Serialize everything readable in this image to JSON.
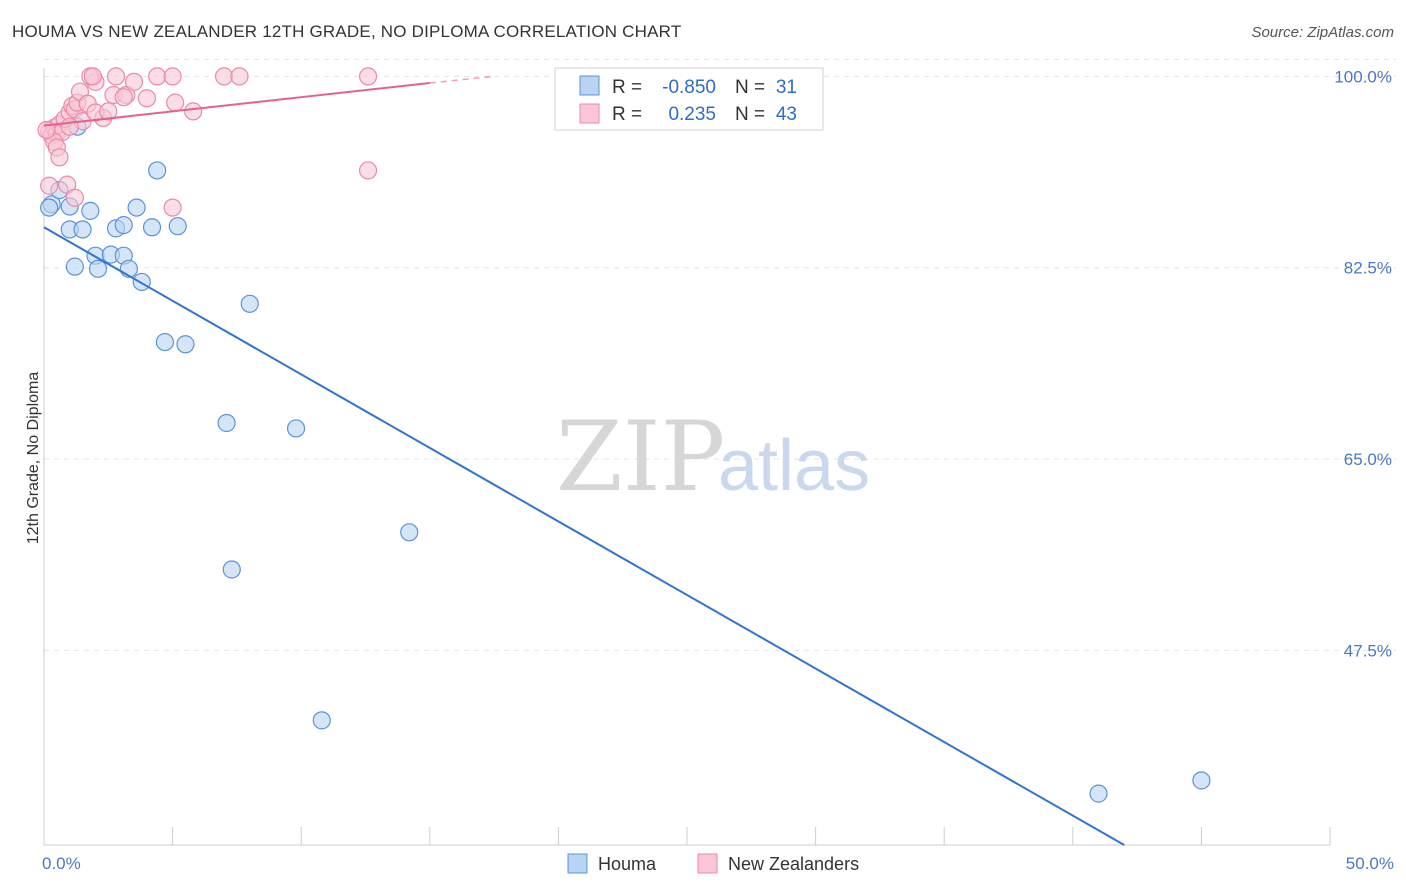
{
  "title": "HOUMA VS NEW ZEALANDER 12TH GRADE, NO DIPLOMA CORRELATION CHART",
  "source": "Source: ZipAtlas.com",
  "watermark": {
    "zip": "ZIP",
    "atlas": "atlas"
  },
  "colors": {
    "houma_fill": "#b8d3f4",
    "houma_stroke": "#5c93d6",
    "houma_line": "#2f74d0",
    "nz_fill": "#f8c6d5",
    "nz_stroke": "#e98aa8",
    "nz_line": "#e4638e",
    "grid": "#e3e3e3",
    "tick_text": "#4a78c4"
  },
  "legend": {
    "rows": [
      {
        "r_label": "R =",
        "r_value": "-0.850",
        "n_label": "N =",
        "n_value": "31"
      },
      {
        "r_label": "R =",
        "r_value": "0.235",
        "n_label": "N =",
        "n_value": "43"
      }
    ]
  },
  "chart_data": {
    "type": "scatter",
    "title": "HOUMA VS NEW ZEALANDER 12TH GRADE, NO DIPLOMA CORRELATION CHART",
    "xlabel": "",
    "ylabel": "12th Grade, No Diploma",
    "xlim": [
      0,
      50
    ],
    "ylim": [
      29.7,
      101.5
    ],
    "x_tick_labels": [
      "0.0%",
      "50.0%"
    ],
    "y_ticks": [
      100.0,
      82.5,
      65.0,
      47.5
    ],
    "y_tick_labels": [
      "100.0%",
      "82.5%",
      "65.0%",
      "47.5%"
    ],
    "grid": true,
    "legend_position": "top-center",
    "bottom_legend": [
      "Houma",
      "New Zealanders"
    ],
    "series": [
      {
        "name": "Houma",
        "r": -0.85,
        "n": 31,
        "points": [
          [
            0.3,
            88.3
          ],
          [
            1.0,
            88.1
          ],
          [
            0.6,
            89.6
          ],
          [
            1.3,
            95.4
          ],
          [
            1.8,
            87.7
          ],
          [
            1.0,
            86.0
          ],
          [
            1.5,
            86.0
          ],
          [
            2.8,
            86.1
          ],
          [
            3.1,
            86.4
          ],
          [
            4.2,
            86.2
          ],
          [
            5.2,
            86.3
          ],
          [
            3.6,
            88.0
          ],
          [
            4.4,
            91.4
          ],
          [
            1.2,
            82.6
          ],
          [
            2.0,
            83.6
          ],
          [
            2.1,
            82.4
          ],
          [
            2.6,
            83.7
          ],
          [
            3.1,
            83.6
          ],
          [
            3.3,
            82.4
          ],
          [
            3.8,
            81.2
          ],
          [
            8.0,
            79.2
          ],
          [
            4.7,
            75.7
          ],
          [
            5.5,
            75.5
          ],
          [
            7.1,
            68.3
          ],
          [
            9.8,
            67.8
          ],
          [
            14.2,
            58.3
          ],
          [
            7.3,
            54.9
          ],
          [
            10.8,
            41.1
          ],
          [
            41.0,
            34.4
          ],
          [
            45.0,
            35.6
          ],
          [
            0.2,
            88.0
          ]
        ],
        "trend_line": {
          "x": [
            0.0,
            42.0
          ],
          "y": [
            86.2,
            29.7
          ]
        }
      },
      {
        "name": "New Zealanders",
        "r": 0.235,
        "n": 43,
        "points": [
          [
            0.2,
            95.0
          ],
          [
            0.3,
            94.6
          ],
          [
            0.4,
            95.3
          ],
          [
            0.5,
            94.8
          ],
          [
            0.6,
            95.6
          ],
          [
            0.7,
            94.9
          ],
          [
            0.8,
            96.1
          ],
          [
            1.0,
            96.7
          ],
          [
            1.1,
            97.3
          ],
          [
            1.2,
            97.0
          ],
          [
            1.3,
            97.6
          ],
          [
            1.4,
            98.6
          ],
          [
            1.5,
            95.9
          ],
          [
            1.7,
            97.5
          ],
          [
            2.0,
            99.5
          ],
          [
            2.3,
            96.2
          ],
          [
            2.0,
            96.7
          ],
          [
            2.7,
            98.3
          ],
          [
            3.2,
            98.3
          ],
          [
            3.5,
            99.5
          ],
          [
            4.4,
            100.0
          ],
          [
            5.0,
            100.0
          ],
          [
            7.0,
            100.0
          ],
          [
            7.6,
            100.0
          ],
          [
            12.6,
            100.0
          ],
          [
            1.8,
            100.0
          ],
          [
            1.9,
            100.0
          ],
          [
            2.8,
            100.0
          ],
          [
            2.5,
            96.8
          ],
          [
            4.0,
            98.0
          ],
          [
            5.1,
            97.6
          ],
          [
            5.8,
            96.8
          ],
          [
            0.4,
            94.0
          ],
          [
            0.5,
            93.5
          ],
          [
            0.6,
            92.6
          ],
          [
            0.2,
            90.0
          ],
          [
            0.9,
            90.1
          ],
          [
            1.2,
            88.9
          ],
          [
            5.0,
            88.0
          ],
          [
            12.6,
            91.4
          ],
          [
            3.1,
            98.1
          ],
          [
            0.1,
            95.1
          ],
          [
            1.0,
            95.4
          ]
        ],
        "trend_line": {
          "x": [
            0.0,
            15.0
          ],
          "y": [
            95.5,
            99.4
          ]
        },
        "trend_line_dashed": {
          "x": [
            15.0,
            17.5
          ],
          "y": [
            99.4,
            100.0
          ]
        }
      }
    ]
  }
}
